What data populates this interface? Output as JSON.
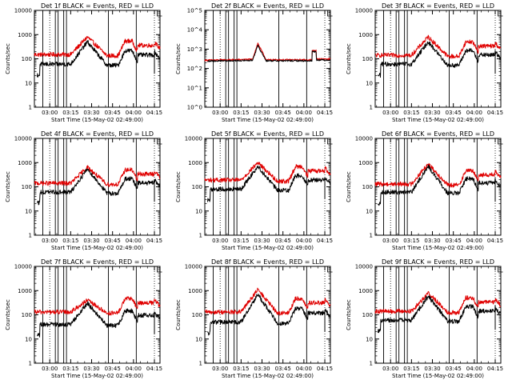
{
  "chart_data": [
    {
      "type": "line",
      "title": "Det 1f BLACK = Events, RED = LLD",
      "xlabel": "Start Time (15-May-02 02:49:00)",
      "ylabel": "Counts/sec",
      "x_ticks": [
        "03:00",
        "03:15",
        "03:30",
        "03:45",
        "04:00",
        "04:15"
      ],
      "y_ticks": [
        "1",
        "10",
        "100",
        "1000",
        "10000"
      ],
      "y_scale": "log",
      "ylim": [
        1,
        10000
      ],
      "xlim_minutes": [
        0,
        90
      ],
      "tick_minutes": [
        11,
        26,
        41,
        56,
        71,
        86
      ],
      "events_lines": [
        6,
        15,
        17,
        21,
        23,
        53,
        73
      ],
      "dotted_lines": [
        11,
        86
      ],
      "profile": "A",
      "series": [
        {
          "name": "Events",
          "color": "#000000",
          "baseline": 60,
          "peak": 500
        },
        {
          "name": "LLD",
          "color": "#e00000",
          "baseline": 150,
          "peak": 800
        }
      ]
    },
    {
      "type": "line",
      "title": "Det 2f BLACK = Events, RED = LLD",
      "xlabel": "Start Time (15-May-02 02:49:00)",
      "ylabel": "Counts/sec",
      "x_ticks": [
        "03:00",
        "03:15",
        "03:30",
        "03:45",
        "04:00",
        "04:15"
      ],
      "y_ticks": [
        "10^0",
        "10^1",
        "10^2",
        "10^3",
        "10^4",
        "10^5"
      ],
      "y_scale": "log",
      "ylim": [
        1,
        100000
      ],
      "xlim_minutes": [
        0,
        90
      ],
      "tick_minutes": [
        11,
        26,
        41,
        56,
        71,
        86
      ],
      "events_lines": [
        6,
        15,
        17,
        21,
        23,
        53,
        73
      ],
      "dotted_lines": [
        11,
        86
      ],
      "profile": "B",
      "series": [
        {
          "name": "Events",
          "color": "#000000",
          "baseline": 250,
          "peak": 1500
        },
        {
          "name": "LLD",
          "color": "#e00000",
          "baseline": 280,
          "peak": 2000
        }
      ]
    },
    {
      "type": "line",
      "title": "Det 3f BLACK = Events, RED = LLD",
      "xlabel": "Start Time (15-May-02 02:49:00)",
      "ylabel": "Counts/sec",
      "x_ticks": [
        "03:00",
        "03:15",
        "03:30",
        "03:45",
        "04:00",
        "04:15"
      ],
      "y_ticks": [
        "1",
        "10",
        "100",
        "1000",
        "10000"
      ],
      "y_scale": "log",
      "ylim": [
        1,
        10000
      ],
      "xlim_minutes": [
        0,
        90
      ],
      "tick_minutes": [
        11,
        26,
        41,
        56,
        71,
        86
      ],
      "events_lines": [
        6,
        15,
        17,
        21,
        23,
        53,
        73
      ],
      "dotted_lines": [
        11,
        86
      ],
      "profile": "A",
      "series": [
        {
          "name": "Events",
          "color": "#000000",
          "baseline": 60,
          "peak": 500
        },
        {
          "name": "LLD",
          "color": "#e00000",
          "baseline": 140,
          "peak": 800
        }
      ]
    },
    {
      "type": "line",
      "title": "Det 4f BLACK = Events, RED = LLD",
      "xlabel": "Start Time (15-May-02 02:49:00)",
      "ylabel": "Counts/sec",
      "x_ticks": [
        "03:00",
        "03:15",
        "03:30",
        "03:45",
        "04:00",
        "04:15"
      ],
      "y_ticks": [
        "1",
        "10",
        "100",
        "1000",
        "10000"
      ],
      "y_scale": "log",
      "ylim": [
        1,
        10000
      ],
      "xlim_minutes": [
        0,
        90
      ],
      "tick_minutes": [
        11,
        26,
        41,
        56,
        71,
        86
      ],
      "events_lines": [
        6,
        15,
        17,
        21,
        23,
        53,
        73
      ],
      "dotted_lines": [
        11,
        86
      ],
      "profile": "A",
      "series": [
        {
          "name": "Events",
          "color": "#000000",
          "baseline": 60,
          "peak": 550
        },
        {
          "name": "LLD",
          "color": "#e00000",
          "baseline": 140,
          "peak": 650
        }
      ]
    },
    {
      "type": "line",
      "title": "Det 5f BLACK = Events, RED = LLD",
      "xlabel": "Start Time (15-May-02 02:49:00)",
      "ylabel": "Counts/sec",
      "x_ticks": [
        "03:00",
        "03:15",
        "03:30",
        "03:45",
        "04:00",
        "04:15"
      ],
      "y_ticks": [
        "1",
        "10",
        "100",
        "1000",
        "10000"
      ],
      "y_scale": "log",
      "ylim": [
        1,
        10000
      ],
      "xlim_minutes": [
        0,
        90
      ],
      "tick_minutes": [
        11,
        26,
        41,
        56,
        71,
        86
      ],
      "events_lines": [
        6,
        15,
        17,
        21,
        23,
        53,
        73
      ],
      "dotted_lines": [
        11,
        86
      ],
      "profile": "A",
      "series": [
        {
          "name": "Events",
          "color": "#000000",
          "baseline": 80,
          "peak": 700
        },
        {
          "name": "LLD",
          "color": "#e00000",
          "baseline": 190,
          "peak": 1000
        }
      ]
    },
    {
      "type": "line",
      "title": "Det 6f BLACK = Events, RED = LLD",
      "xlabel": "Start Time (15-May-02 02:49:00)",
      "ylabel": "Counts/sec",
      "x_ticks": [
        "03:00",
        "03:15",
        "03:30",
        "03:45",
        "04:00",
        "04:15"
      ],
      "y_ticks": [
        "1",
        "10",
        "100",
        "1000",
        "10000"
      ],
      "y_scale": "log",
      "ylim": [
        1,
        10000
      ],
      "xlim_minutes": [
        0,
        90
      ],
      "tick_minutes": [
        11,
        26,
        41,
        56,
        71,
        86
      ],
      "events_lines": [
        6,
        15,
        17,
        21,
        23,
        53,
        73
      ],
      "dotted_lines": [
        11,
        86
      ],
      "profile": "A",
      "series": [
        {
          "name": "Events",
          "color": "#000000",
          "baseline": 60,
          "peak": 700
        },
        {
          "name": "LLD",
          "color": "#e00000",
          "baseline": 130,
          "peak": 900
        }
      ]
    },
    {
      "type": "line",
      "title": "Det 7f BLACK = Events, RED = LLD",
      "xlabel": "Start Time (15-May-02 02:49:00)",
      "ylabel": "Counts/sec",
      "x_ticks": [
        "03:00",
        "03:15",
        "03:30",
        "03:45",
        "04:00",
        "04:15"
      ],
      "y_ticks": [
        "1",
        "10",
        "100",
        "1000",
        "10000"
      ],
      "y_scale": "log",
      "ylim": [
        1,
        10000
      ],
      "xlim_minutes": [
        0,
        90
      ],
      "tick_minutes": [
        11,
        26,
        41,
        56,
        71,
        86
      ],
      "events_lines": [
        6,
        15,
        17,
        21,
        23,
        53,
        73
      ],
      "dotted_lines": [
        11,
        86
      ],
      "profile": "A",
      "series": [
        {
          "name": "Events",
          "color": "#000000",
          "baseline": 40,
          "peak": 300
        },
        {
          "name": "LLD",
          "color": "#e00000",
          "baseline": 130,
          "peak": 400
        }
      ]
    },
    {
      "type": "line",
      "title": "Det 8f BLACK = Events, RED = LLD",
      "xlabel": "Start Time (15-May-02 02:49:00)",
      "ylabel": "Counts/sec",
      "x_ticks": [
        "03:00",
        "03:15",
        "03:30",
        "03:45",
        "04:00",
        "04:15"
      ],
      "y_ticks": [
        "1",
        "10",
        "100",
        "1000",
        "10000"
      ],
      "y_scale": "log",
      "ylim": [
        1,
        10000
      ],
      "xlim_minutes": [
        0,
        90
      ],
      "tick_minutes": [
        11,
        26,
        41,
        56,
        71,
        86
      ],
      "events_lines": [
        6,
        15,
        17,
        21,
        23,
        53,
        73
      ],
      "dotted_lines": [
        11,
        86
      ],
      "profile": "A",
      "series": [
        {
          "name": "Events",
          "color": "#000000",
          "baseline": 50,
          "peak": 700
        },
        {
          "name": "LLD",
          "color": "#e00000",
          "baseline": 130,
          "peak": 1100
        }
      ]
    },
    {
      "type": "line",
      "title": "Det 9f BLACK = Events, RED = LLD",
      "xlabel": "Start Time (15-May-02 02:49:00)",
      "ylabel": "Counts/sec",
      "x_ticks": [
        "03:00",
        "03:15",
        "03:30",
        "03:45",
        "04:00",
        "04:15"
      ],
      "y_ticks": [
        "1",
        "10",
        "100",
        "1000",
        "10000"
      ],
      "y_scale": "log",
      "ylim": [
        1,
        10000
      ],
      "xlim_minutes": [
        0,
        90
      ],
      "tick_minutes": [
        11,
        26,
        41,
        56,
        71,
        86
      ],
      "events_lines": [
        6,
        15,
        17,
        21,
        23,
        53,
        73
      ],
      "dotted_lines": [
        11,
        86
      ],
      "profile": "A",
      "series": [
        {
          "name": "Events",
          "color": "#000000",
          "baseline": 60,
          "peak": 600
        },
        {
          "name": "LLD",
          "color": "#e00000",
          "baseline": 140,
          "peak": 800
        }
      ]
    }
  ]
}
